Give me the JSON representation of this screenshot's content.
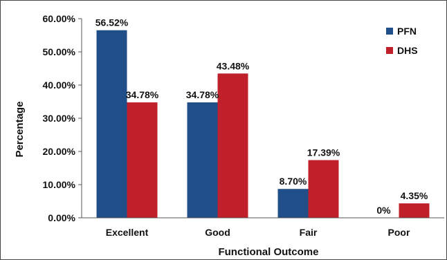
{
  "chart_data": {
    "type": "bar",
    "title": "",
    "xlabel": "Functional Outcome",
    "ylabel": "Percentage",
    "ylim": [
      0,
      60
    ],
    "yticks": [
      "0.00%",
      "10.00%",
      "20.00%",
      "30.00%",
      "40.00%",
      "50.00%",
      "60.00%"
    ],
    "ytick_values": [
      0,
      10,
      20,
      30,
      40,
      50,
      60
    ],
    "categories": [
      "Excellent",
      "Good",
      "Fair",
      "Poor"
    ],
    "series": [
      {
        "name": "PFN",
        "color": "#1f4e89",
        "values": [
          56.52,
          34.78,
          8.7,
          0
        ],
        "labels": [
          "56.52%",
          "34.78%",
          "8.70%",
          "0%"
        ]
      },
      {
        "name": "DHS",
        "color": "#c0202a",
        "values": [
          34.78,
          43.48,
          17.39,
          4.35
        ],
        "labels": [
          "34.78%",
          "43.48%",
          "17.39%",
          "4.35%"
        ]
      }
    ],
    "legend_position": "top-right",
    "grid": false
  }
}
